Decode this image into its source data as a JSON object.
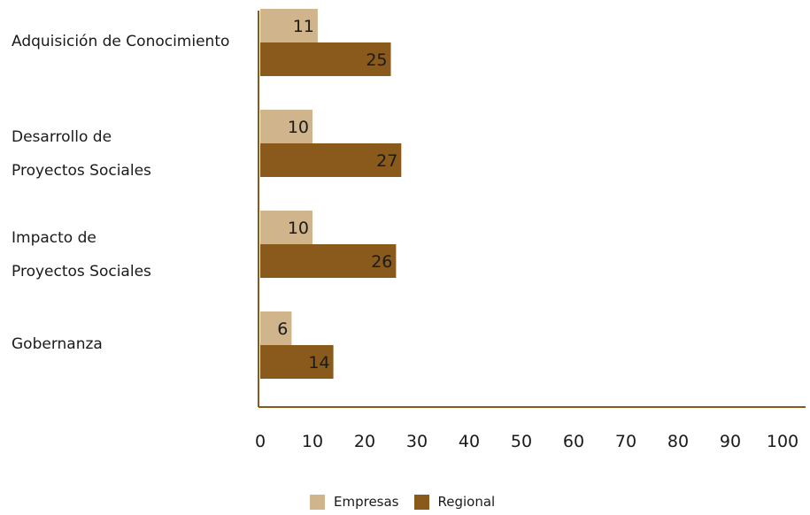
{
  "chart_data": {
    "type": "bar",
    "orientation": "horizontal",
    "categories": [
      [
        "Adquisición de Conocimiento"
      ],
      [
        "Desarrollo de",
        "Proyectos Sociales"
      ],
      [
        "Impacto de",
        "Proyectos Sociales"
      ],
      [
        "Gobernanza"
      ]
    ],
    "series": [
      {
        "name": "Empresas",
        "values": [
          11,
          10,
          10,
          6
        ],
        "color": "#cfb48c"
      },
      {
        "name": "Regional",
        "values": [
          25,
          27,
          26,
          14
        ],
        "color": "#8a5a1c"
      }
    ],
    "x_ticks": [
      "0",
      "10",
      "20",
      "30",
      "40",
      "50",
      "60",
      "70",
      "80",
      "90",
      "100"
    ],
    "xlim": [
      0,
      100
    ],
    "grid": false,
    "legend_position": "bottom",
    "axis_color": "#8a5a1c"
  }
}
